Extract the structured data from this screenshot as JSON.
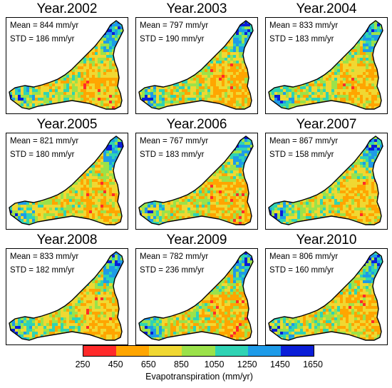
{
  "panels": [
    {
      "title": "Year.2002",
      "mean": "Mean = 844 mm/yr",
      "std": "STD = 186 mm/yr",
      "hot": 0.55
    },
    {
      "title": "Year.2003",
      "mean": "Mean = 797 mm/yr",
      "std": "STD = 190 mm/yr",
      "hot": 0.65
    },
    {
      "title": "Year.2004",
      "mean": "Mean = 833 mm/yr",
      "std": "STD = 183 mm/yr",
      "hot": 0.5
    },
    {
      "title": "Year.2005",
      "mean": "Mean = 821 mm/yr",
      "std": "STD = 180 mm/yr",
      "hot": 0.6
    },
    {
      "title": "Year.2006",
      "mean": "Mean = 767 mm/yr",
      "std": "STD = 183 mm/yr",
      "hot": 0.75
    },
    {
      "title": "Year.2007",
      "mean": "Mean = 867 mm/yr",
      "std": "STD = 158 mm/yr",
      "hot": 0.45
    },
    {
      "title": "Year.2008",
      "mean": "Mean = 833 mm/yr",
      "std": "STD = 182 mm/yr",
      "hot": 0.55
    },
    {
      "title": "Year.2009",
      "mean": "Mean = 782 mm/yr",
      "std": "STD = 236 mm/yr",
      "hot": 0.9
    },
    {
      "title": "Year.2010",
      "mean": "Mean = 806 mm/yr",
      "std": "STD = 160 mm/yr",
      "hot": 0.6
    }
  ],
  "legend": {
    "colors": [
      "#ff2a2a",
      "#ffa500",
      "#f0d832",
      "#9be24a",
      "#2fd3b4",
      "#1e9be8",
      "#0a1ed8"
    ],
    "ticks": [
      "250",
      "450",
      "650",
      "850",
      "1050",
      "1250",
      "1450",
      "1650"
    ],
    "title": "Evapotranspiration (mm/yr)"
  }
}
